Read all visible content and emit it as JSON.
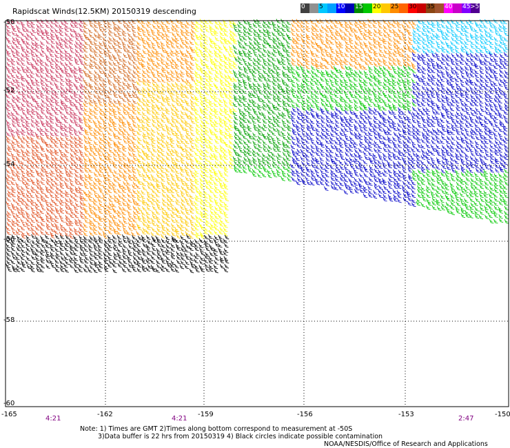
{
  "title": "Rapidscat Winds(12.5KM) 20150319 descending",
  "legend": {
    "unit_label": ">50 knots",
    "bins": [
      {
        "label": "0",
        "color": "#404040"
      },
      {
        "label": "",
        "color": "#909090"
      },
      {
        "label": "5",
        "color": "#00c8ff"
      },
      {
        "label": "",
        "color": "#00a0ff"
      },
      {
        "label": "10",
        "color": "#0000ff"
      },
      {
        "label": "",
        "color": "#0000b4"
      },
      {
        "label": "15",
        "color": "#008c00"
      },
      {
        "label": "",
        "color": "#00c800"
      },
      {
        "label": "20",
        "color": "#ffff00"
      },
      {
        "label": "",
        "color": "#ffc800"
      },
      {
        "label": "25",
        "color": "#ff8c00"
      },
      {
        "label": "",
        "color": "#ff6400"
      },
      {
        "label": "30",
        "color": "#ff0000"
      },
      {
        "label": "",
        "color": "#c80000"
      },
      {
        "label": "35",
        "color": "#8b4513"
      },
      {
        "label": "",
        "color": "#a0522d"
      },
      {
        "label": "40",
        "color": "#ff00ff"
      },
      {
        "label": "",
        "color": "#c800c8"
      },
      {
        "label": "45",
        "color": "#8000ff"
      },
      {
        "label": "",
        "color": "#500090"
      }
    ]
  },
  "longitude_labels": [
    "-165",
    "-162",
    "-159",
    "-156",
    "-153",
    "-150"
  ],
  "latitude_labels": [
    "-50",
    "-52",
    "-54",
    "-56",
    "-58",
    "-60"
  ],
  "time_labels": [
    "4:21",
    "4:21",
    "2:47"
  ],
  "notes": {
    "line1": "Note: 1) Times are GMT 2)Times along bottom correspond to measurement at -50S",
    "line2": "3)Data buffer is 22 hrs from 20150319 4) Black circles indicate possible contamination",
    "credit": "NOAA/NESDIS/Office of Research and Applications"
  }
}
